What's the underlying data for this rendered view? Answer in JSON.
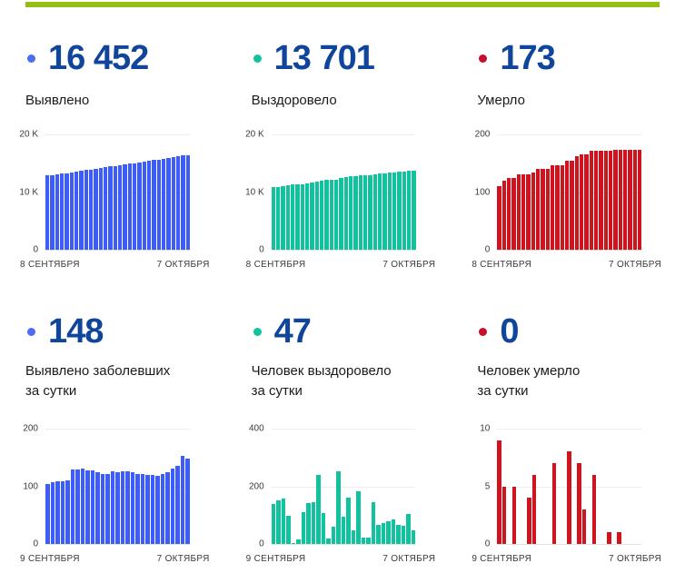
{
  "page": {
    "colors": {
      "accent_bar": "#95bf17",
      "stat_value": "#10459c",
      "detected": "#3e5cf7",
      "recovered": "#10c39e",
      "deaths": "#cf141f"
    }
  },
  "stats": [
    {
      "id": "detected_total",
      "value": "16 452",
      "dot_color": "#4a6cf7",
      "label_lines": [
        "Выявлено"
      ]
    },
    {
      "id": "recovered_total",
      "value": "13 701",
      "dot_color": "#10c39e",
      "label_lines": [
        "Выздоровело"
      ]
    },
    {
      "id": "deaths_total",
      "value": "173",
      "dot_color": "#c8102e",
      "label_lines": [
        "Умерло"
      ]
    },
    {
      "id": "detected_daily",
      "value": "148",
      "dot_color": "#4a6cf7",
      "label_lines": [
        "Выявлено заболевших",
        "за сутки"
      ]
    },
    {
      "id": "recovered_daily",
      "value": "47",
      "dot_color": "#10c39e",
      "label_lines": [
        "Человек выздоровело",
        "за сутки"
      ]
    },
    {
      "id": "deaths_daily",
      "value": "0",
      "dot_color": "#c8102e",
      "label_lines": [
        "Человек умерло",
        "за сутки"
      ]
    }
  ],
  "chart_data": [
    {
      "id": "detected_cumulative",
      "type": "bar",
      "color": "#3e5cf7",
      "title": "Выявлено",
      "legend_position": "none",
      "grid": true,
      "x_start_label": "8 СЕНТЯБРЯ",
      "x_end_label": "7 ОКТЯБРЯ",
      "yticks": [
        "20 K",
        "10 K",
        "0"
      ],
      "ylim": [
        0,
        20000
      ],
      "values": [
        12863,
        12967,
        13074,
        13183,
        13292,
        13403,
        13532,
        13661,
        13791,
        13919,
        14046,
        14170,
        14291,
        14413,
        14539,
        14664,
        14790,
        14916,
        15040,
        15162,
        15283,
        15403,
        15522,
        15640,
        15761,
        15885,
        16016,
        16152,
        16304,
        16452
      ]
    },
    {
      "id": "recovered_cumulative",
      "type": "bar",
      "color": "#10c39e",
      "title": "Выздоровело",
      "legend_position": "none",
      "grid": true,
      "x_start_label": "8 СЕНТЯБРЯ",
      "x_end_label": "7 ОКТЯБРЯ",
      "yticks": [
        "20 K",
        "10 K",
        "0"
      ],
      "ylim": [
        0,
        20000
      ],
      "values": [
        10800,
        10940,
        11092,
        11248,
        11346,
        11349,
        11364,
        11474,
        11617,
        11763,
        12001,
        12107,
        12127,
        12187,
        12440,
        12535,
        12695,
        12742,
        12925,
        12948,
        12970,
        13115,
        13182,
        13255,
        13334,
        13419,
        13486,
        13549,
        13654,
        13701
      ]
    },
    {
      "id": "deaths_cumulative",
      "type": "bar",
      "color": "#cf141f",
      "title": "Умерло",
      "legend_position": "none",
      "grid": true,
      "x_start_label": "8 СЕНТЯБРЯ",
      "x_end_label": "7 ОКТЯБРЯ",
      "yticks": [
        "200",
        "100",
        "0"
      ],
      "ylim": [
        0,
        200
      ],
      "values": [
        111,
        120,
        125,
        125,
        130,
        130,
        130,
        134,
        140,
        140,
        140,
        147,
        147,
        147,
        155,
        155,
        162,
        165,
        165,
        171,
        171,
        171,
        172,
        172,
        173,
        173,
        173,
        173,
        173,
        173
      ]
    },
    {
      "id": "detected_daily",
      "type": "bar",
      "color": "#3e5cf7",
      "title": "Выявлено заболевших за сутки",
      "legend_position": "none",
      "grid": true,
      "x_start_label": "9 СЕНТЯБРЯ",
      "x_end_label": "7 ОКТЯБРЯ",
      "yticks": [
        "200",
        "100",
        "0"
      ],
      "ylim": [
        0,
        200
      ],
      "values": [
        104,
        107,
        109,
        109,
        111,
        129,
        129,
        130,
        128,
        127,
        124,
        121,
        122,
        126,
        125,
        126,
        126,
        124,
        122,
        121,
        120,
        119,
        118,
        121,
        124,
        131,
        136,
        152,
        148
      ]
    },
    {
      "id": "recovered_daily",
      "type": "bar",
      "color": "#10c39e",
      "title": "Человек выздоровело за сутки",
      "legend_position": "none",
      "grid": true,
      "x_start_label": "9 СЕНТЯБРЯ",
      "x_end_label": "7 ОКТЯБРЯ",
      "yticks": [
        "400",
        "200",
        "0"
      ],
      "ylim": [
        0,
        400
      ],
      "values": [
        140,
        152,
        156,
        98,
        3,
        15,
        110,
        143,
        146,
        238,
        106,
        20,
        60,
        253,
        95,
        160,
        47,
        183,
        23,
        22,
        145,
        67,
        73,
        79,
        85,
        67,
        63,
        105,
        47
      ]
    },
    {
      "id": "deaths_daily",
      "type": "bar",
      "color": "#cf141f",
      "title": "Человек умерло за сутки",
      "legend_position": "none",
      "grid": true,
      "x_start_label": "9 СЕНТЯБРЯ",
      "x_end_label": "7 ОКТЯБРЯ",
      "yticks": [
        "10",
        "5",
        "0"
      ],
      "ylim": [
        0,
        10
      ],
      "values": [
        9,
        5,
        0,
        5,
        0,
        0,
        4,
        6,
        0,
        0,
        0,
        7,
        0,
        0,
        8,
        0,
        7,
        3,
        0,
        6,
        0,
        0,
        1,
        0,
        1,
        0,
        0,
        0,
        0
      ]
    }
  ]
}
